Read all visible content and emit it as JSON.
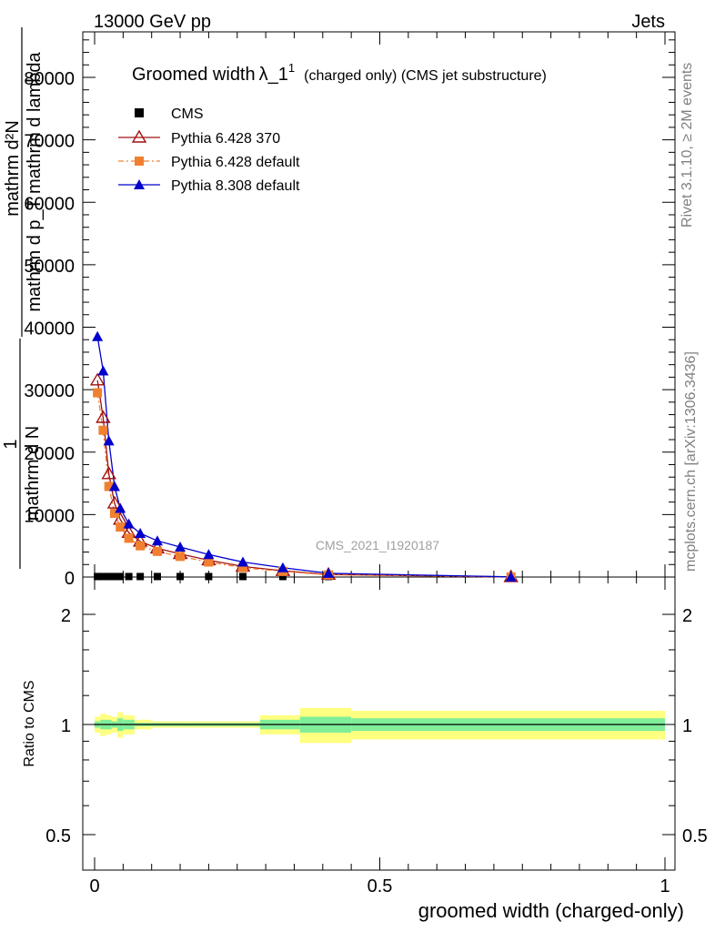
{
  "header": {
    "left": "13000 GeV pp",
    "right": "Jets"
  },
  "side_labels": {
    "rivet": "Rivet 3.1.10, ≥ 2M events",
    "mcplots": "mcplots.cern.ch [arXiv:1306.3436]"
  },
  "chart_data": {
    "type": "line",
    "title": "Groomed width λ_1¹ (charged only) (CMS jet substructure)",
    "title_main": "Groomed width",
    "title_lambda": "λ_1",
    "title_sup": "1",
    "title_sub": "(charged only) (CMS jet substructure)",
    "analysis_id": "CMS_2021_I1920187",
    "ylabel_numerator": "1",
    "ylabel_denominator": "mathrm d N",
    "ylabel_line1": "mathrm d N",
    "ylabel_line2": "mathrm d p_T mathrm d lambda",
    "ylabel_display_a": "mathrm d²N",
    "ylabel_display_b": "mathrm d p_T mathrm d lambda",
    "xlabel": "groomed width (charged-only)",
    "ratio_ylabel": "Ratio to CMS",
    "xlim": [
      -0.02,
      1.0
    ],
    "ylim": [
      0,
      87000
    ],
    "ratio_ylim": [
      0.42,
      2.3
    ],
    "x_ticks": [
      "0",
      "0.5",
      "1"
    ],
    "y_ticks": [
      "10000",
      "20000",
      "30000",
      "40000",
      "50000",
      "60000",
      "70000",
      "80000"
    ],
    "ratio_ticks": [
      "0.5",
      "1",
      "2"
    ],
    "series": [
      {
        "name": "CMS",
        "color": "#000000",
        "marker": "square",
        "x": [
          0.005,
          0.015,
          0.025,
          0.035,
          0.045,
          0.06,
          0.08,
          0.11,
          0.15,
          0.2,
          0.26,
          0.33,
          0.41,
          0.73
        ],
        "y": [
          80,
          80,
          80,
          80,
          80,
          80,
          80,
          80,
          80,
          80,
          80,
          80,
          80,
          80
        ]
      },
      {
        "name": "Pythia 6.428 370",
        "color": "#a01010",
        "marker": "open-triangle",
        "x": [
          0.005,
          0.015,
          0.025,
          0.035,
          0.045,
          0.06,
          0.08,
          0.11,
          0.15,
          0.2,
          0.26,
          0.33,
          0.41,
          0.73
        ],
        "y": [
          31500,
          25500,
          16500,
          11800,
          9200,
          7100,
          5700,
          4600,
          3700,
          2700,
          1700,
          1000,
          400,
          20
        ]
      },
      {
        "name": "Pythia 6.428 default",
        "color": "#f08030",
        "marker": "square",
        "x": [
          0.005,
          0.015,
          0.025,
          0.035,
          0.045,
          0.06,
          0.08,
          0.11,
          0.15,
          0.2,
          0.26,
          0.33,
          0.41,
          0.73
        ],
        "y": [
          29500,
          23500,
          14500,
          10200,
          8000,
          6200,
          5000,
          4100,
          3300,
          2400,
          1500,
          900,
          350,
          15
        ]
      },
      {
        "name": "Pythia 8.308 default",
        "color": "#0000cc",
        "marker": "triangle",
        "x": [
          0.005,
          0.015,
          0.025,
          0.035,
          0.045,
          0.06,
          0.08,
          0.11,
          0.15,
          0.2,
          0.26,
          0.33,
          0.41,
          0.73
        ],
        "y": [
          38500,
          33000,
          21800,
          14500,
          11000,
          8500,
          7000,
          5800,
          4800,
          3600,
          2400,
          1500,
          600,
          25
        ]
      }
    ],
    "ratio_bands": [
      {
        "x0": 0.0,
        "x1": 0.01,
        "inner": 0.02,
        "outer": 0.05
      },
      {
        "x0": 0.01,
        "x1": 0.02,
        "inner": 0.03,
        "outer": 0.07
      },
      {
        "x0": 0.02,
        "x1": 0.03,
        "inner": 0.03,
        "outer": 0.06
      },
      {
        "x0": 0.03,
        "x1": 0.04,
        "inner": 0.02,
        "outer": 0.05
      },
      {
        "x0": 0.04,
        "x1": 0.05,
        "inner": 0.04,
        "outer": 0.08
      },
      {
        "x0": 0.05,
        "x1": 0.07,
        "inner": 0.03,
        "outer": 0.06
      },
      {
        "x0": 0.07,
        "x1": 0.1,
        "inner": 0.01,
        "outer": 0.03
      },
      {
        "x0": 0.1,
        "x1": 0.13,
        "inner": 0.01,
        "outer": 0.02
      },
      {
        "x0": 0.13,
        "x1": 0.17,
        "inner": 0.01,
        "outer": 0.02
      },
      {
        "x0": 0.17,
        "x1": 0.23,
        "inner": 0.01,
        "outer": 0.02
      },
      {
        "x0": 0.23,
        "x1": 0.29,
        "inner": 0.01,
        "outer": 0.02
      },
      {
        "x0": 0.29,
        "x1": 0.36,
        "inner": 0.03,
        "outer": 0.06
      },
      {
        "x0": 0.36,
        "x1": 0.45,
        "inner": 0.05,
        "outer": 0.11
      },
      {
        "x0": 0.45,
        "x1": 1.0,
        "inner": 0.04,
        "outer": 0.09
      }
    ]
  }
}
